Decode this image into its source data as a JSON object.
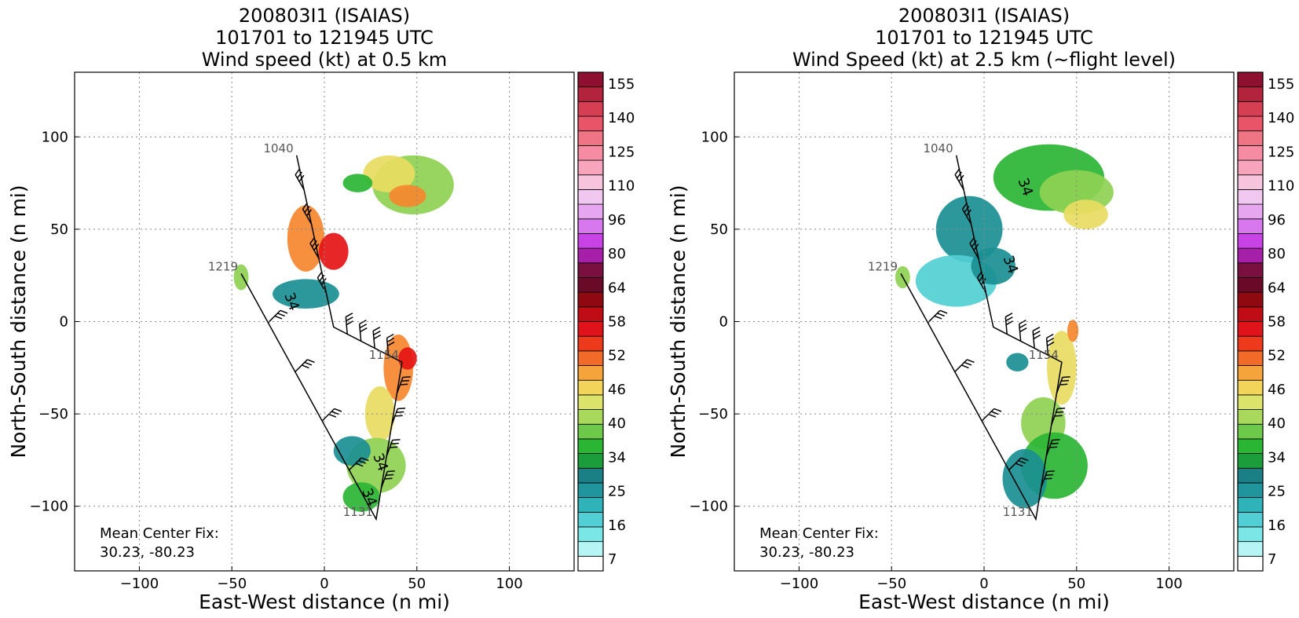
{
  "chart_data": [
    {
      "type": "scatter",
      "title_lines": [
        "200803I1 (ISAIAS)",
        "101701 to 121945 UTC",
        "Wind speed (kt) at 0.5 km"
      ],
      "xlabel": "East-West distance (n mi)",
      "ylabel": "North-South distance (n mi)",
      "xlim": [
        -135,
        135
      ],
      "ylim": [
        -135,
        135
      ],
      "xticks": [
        -100,
        -50,
        0,
        50,
        100
      ],
      "yticks": [
        -100,
        -50,
        0,
        50,
        100
      ],
      "x_tick_labels": [
        "−100",
        "−50",
        "0",
        "50",
        "100"
      ],
      "y_tick_labels": [
        "−100",
        "−50",
        "0",
        "50",
        "100"
      ],
      "grid": true,
      "colorbar_ticks": [
        "155",
        "140",
        "125",
        "110",
        "96",
        "80",
        "64",
        "58",
        "52",
        "46",
        "40",
        "34",
        "25",
        "16",
        "7"
      ],
      "flight_track": [
        {
          "label": "1040",
          "x": -15,
          "y": 90
        },
        {
          "x": 5,
          "y": -3
        },
        {
          "label": "1154",
          "x": 42,
          "y": -22
        },
        {
          "label": "1131",
          "x": 28,
          "y": -107
        },
        {
          "label": "1219",
          "x": -45,
          "y": 26
        }
      ],
      "contour_labels": [
        {
          "text": "34",
          "x": -20,
          "y": 10
        },
        {
          "text": "34",
          "x": 28,
          "y": -77
        },
        {
          "text": "34",
          "x": 22,
          "y": -96
        }
      ],
      "wind_blobs": [
        {
          "x": -10,
          "y": 45,
          "rx": 10,
          "ry": 18,
          "level": 52
        },
        {
          "x": 5,
          "y": 38,
          "rx": 8,
          "ry": 10,
          "level": 58
        },
        {
          "x": 48,
          "y": 74,
          "rx": 22,
          "ry": 16,
          "level": 40
        },
        {
          "x": 35,
          "y": 80,
          "rx": 14,
          "ry": 10,
          "level": 46
        },
        {
          "x": 45,
          "y": 68,
          "rx": 10,
          "ry": 6,
          "level": 52
        },
        {
          "x": 18,
          "y": 75,
          "rx": 8,
          "ry": 5,
          "level": 34
        },
        {
          "x": -10,
          "y": 15,
          "rx": 18,
          "ry": 8,
          "level": 25
        },
        {
          "x": -45,
          "y": 24,
          "rx": 4,
          "ry": 7,
          "level": 40
        },
        {
          "x": 40,
          "y": -25,
          "rx": 8,
          "ry": 18,
          "level": 52
        },
        {
          "x": 45,
          "y": -20,
          "rx": 5,
          "ry": 6,
          "level": 58
        },
        {
          "x": 30,
          "y": -50,
          "rx": 8,
          "ry": 15,
          "level": 46
        },
        {
          "x": 28,
          "y": -78,
          "rx": 16,
          "ry": 15,
          "level": 40
        },
        {
          "x": 15,
          "y": -70,
          "rx": 10,
          "ry": 8,
          "level": 25
        },
        {
          "x": 20,
          "y": -95,
          "rx": 10,
          "ry": 8,
          "level": 34
        }
      ],
      "annotation": [
        "Mean Center Fix:",
        "30.23, -80.23"
      ]
    },
    {
      "type": "scatter",
      "title_lines": [
        "200803I1 (ISAIAS)",
        "101701 to 121945 UTC",
        "Wind Speed (kt) at 2.5 km (~flight level)"
      ],
      "xlabel": "East-West distance (n mi)",
      "ylabel": "North-South distance (n mi)",
      "xlim": [
        -135,
        135
      ],
      "ylim": [
        -135,
        135
      ],
      "xticks": [
        -100,
        -50,
        0,
        50,
        100
      ],
      "yticks": [
        -100,
        -50,
        0,
        50,
        100
      ],
      "x_tick_labels": [
        "−100",
        "−50",
        "0",
        "50",
        "100"
      ],
      "y_tick_labels": [
        "−100",
        "−50",
        "0",
        "50",
        "100"
      ],
      "grid": true,
      "colorbar_ticks": [
        "155",
        "140",
        "125",
        "110",
        "96",
        "80",
        "64",
        "58",
        "52",
        "46",
        "40",
        "34",
        "25",
        "16",
        "7"
      ],
      "flight_track": [
        {
          "label": "1040",
          "x": -15,
          "y": 90
        },
        {
          "x": 5,
          "y": -3
        },
        {
          "label": "1154",
          "x": 42,
          "y": -22
        },
        {
          "label": "1131",
          "x": 28,
          "y": -107
        },
        {
          "label": "1219",
          "x": -45,
          "y": 26
        }
      ],
      "contour_labels": [
        {
          "text": "34",
          "x": 20,
          "y": 72
        },
        {
          "text": "34",
          "x": 12,
          "y": 30
        }
      ],
      "wind_blobs": [
        {
          "x": 35,
          "y": 78,
          "rx": 30,
          "ry": 18,
          "level": 34
        },
        {
          "x": 50,
          "y": 70,
          "rx": 20,
          "ry": 12,
          "level": 40
        },
        {
          "x": 55,
          "y": 58,
          "rx": 12,
          "ry": 8,
          "level": 46
        },
        {
          "x": -8,
          "y": 50,
          "rx": 18,
          "ry": 18,
          "level": 25
        },
        {
          "x": -15,
          "y": 22,
          "rx": 22,
          "ry": 14,
          "level": 16
        },
        {
          "x": 5,
          "y": 30,
          "rx": 12,
          "ry": 10,
          "level": 25
        },
        {
          "x": -44,
          "y": 24,
          "rx": 4,
          "ry": 6,
          "level": 40
        },
        {
          "x": 42,
          "y": -25,
          "rx": 8,
          "ry": 20,
          "level": 46
        },
        {
          "x": 48,
          "y": -5,
          "rx": 3,
          "ry": 6,
          "level": 52
        },
        {
          "x": 32,
          "y": -55,
          "rx": 12,
          "ry": 14,
          "level": 40
        },
        {
          "x": 38,
          "y": -78,
          "rx": 18,
          "ry": 18,
          "level": 34
        },
        {
          "x": 22,
          "y": -85,
          "rx": 12,
          "ry": 16,
          "level": 25
        },
        {
          "x": 18,
          "y": -22,
          "rx": 6,
          "ry": 5,
          "level": 25
        }
      ],
      "annotation": [
        "Mean Center Fix:",
        "30.23, -80.23"
      ]
    }
  ],
  "colors": {
    "colorbar": [
      "#ffffff",
      "#b6f5f5",
      "#7ae6e6",
      "#52cfd4",
      "#2fb3b8",
      "#20969c",
      "#1b7f86",
      "#1a9d3a",
      "#2bb534",
      "#6cc94a",
      "#a8d95c",
      "#dbe36a",
      "#f2d45a",
      "#f5a33b",
      "#f26a28",
      "#ee3a1c",
      "#e0131a",
      "#c00d15",
      "#8e0a10",
      "#6a0a28",
      "#7a1040",
      "#a61fa8",
      "#c743e6",
      "#d778ee",
      "#e6a6f0",
      "#f0c7ee",
      "#f6c4dc",
      "#f7a4bc",
      "#f58ca4",
      "#f07584",
      "#e85568",
      "#d63e54",
      "#b3243c",
      "#8e1030"
    ],
    "level_colors": {
      "7": "#b6f5f5",
      "16": "#52cfd4",
      "25": "#1b8f92",
      "34": "#2bb534",
      "40": "#8fd152",
      "46": "#e8dc62",
      "52": "#f5872f",
      "58": "#e51515"
    },
    "track": "#000000",
    "grid": "#888888"
  }
}
